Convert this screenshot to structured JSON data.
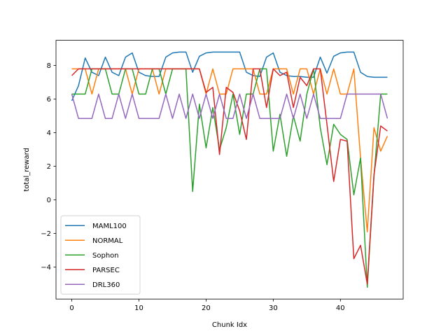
{
  "chart_data": {
    "type": "line",
    "title": "",
    "xlabel": "Chunk Idx",
    "ylabel": "total_reward",
    "xlim": [
      -2.35,
      49.35
    ],
    "ylim": [
      -5.9,
      9.5
    ],
    "xticks": [
      0,
      10,
      20,
      30,
      40
    ],
    "yticks": [
      -4,
      -2,
      0,
      2,
      4,
      6,
      8
    ],
    "grid": false,
    "legend": "lower-left",
    "x": [
      0,
      1,
      2,
      3,
      4,
      5,
      6,
      7,
      8,
      9,
      10,
      11,
      12,
      13,
      14,
      15,
      16,
      17,
      18,
      19,
      20,
      21,
      22,
      23,
      24,
      25,
      26,
      27,
      28,
      29,
      30,
      31,
      32,
      33,
      34,
      35,
      36,
      37,
      38,
      39,
      40,
      41,
      42,
      43,
      44,
      45,
      46,
      47
    ],
    "series": [
      {
        "name": "MAML100",
        "color": "#1f77b4",
        "values": [
          5.9,
          6.8,
          8.45,
          7.6,
          7.4,
          8.5,
          7.6,
          7.4,
          8.5,
          8.75,
          7.6,
          7.4,
          7.35,
          7.35,
          8.5,
          8.75,
          8.8,
          8.8,
          7.6,
          8.55,
          8.75,
          8.8,
          8.8,
          8.8,
          8.8,
          8.8,
          7.6,
          7.4,
          7.35,
          8.5,
          8.75,
          7.6,
          7.4,
          7.35,
          7.35,
          7.3,
          7.3,
          8.5,
          7.55,
          8.55,
          8.75,
          8.8,
          8.8,
          7.6,
          7.35,
          7.3,
          7.3,
          7.3
        ]
      },
      {
        "name": "NORMAL",
        "color": "#ff7f0e",
        "values": [
          7.8,
          7.8,
          7.8,
          6.3,
          7.8,
          7.8,
          7.8,
          7.8,
          7.8,
          6.3,
          7.8,
          7.8,
          7.8,
          6.3,
          7.8,
          7.8,
          7.8,
          7.8,
          7.8,
          7.8,
          6.3,
          7.8,
          6.3,
          6.3,
          7.8,
          7.8,
          7.8,
          7.8,
          6.3,
          6.3,
          7.8,
          7.8,
          7.8,
          6.3,
          7.8,
          7.8,
          6.3,
          7.8,
          6.3,
          7.8,
          6.3,
          6.3,
          7.8,
          2.5,
          -1.9,
          4.3,
          2.9,
          3.8
        ]
      },
      {
        "name": "Sophon",
        "color": "#2ca02c",
        "values": [
          6.3,
          6.3,
          6.3,
          7.8,
          7.8,
          7.8,
          6.3,
          6.3,
          7.8,
          7.8,
          6.3,
          6.3,
          7.8,
          7.8,
          6.3,
          7.8,
          7.8,
          7.8,
          0.5,
          5.7,
          3.1,
          5.5,
          3.0,
          4.3,
          6.3,
          3.9,
          6.3,
          6.3,
          7.8,
          7.8,
          2.9,
          5.1,
          2.6,
          5.0,
          3.5,
          6.3,
          7.8,
          4.3,
          2.1,
          4.5,
          3.9,
          3.6,
          0.3,
          2.5,
          -5.2,
          1.4,
          6.3,
          6.3
        ]
      },
      {
        "name": "PARSEC",
        "color": "#d62728",
        "values": [
          7.4,
          7.8,
          7.8,
          7.8,
          7.8,
          7.8,
          7.8,
          7.8,
          7.8,
          7.8,
          7.8,
          7.8,
          7.8,
          7.8,
          7.8,
          7.8,
          7.8,
          7.8,
          7.8,
          7.8,
          6.4,
          6.7,
          2.7,
          6.7,
          6.4,
          5.3,
          3.6,
          7.8,
          7.8,
          5.5,
          7.8,
          7.4,
          7.6,
          5.5,
          7.3,
          6.8,
          7.8,
          7.8,
          4.5,
          1.1,
          3.6,
          3.5,
          -3.5,
          -2.7,
          -5.0,
          1.5,
          4.4,
          4.1
        ]
      },
      {
        "name": "DRL360",
        "color": "#9467bd",
        "values": [
          6.3,
          4.85,
          4.85,
          4.85,
          6.3,
          4.85,
          4.85,
          6.3,
          4.85,
          6.3,
          4.85,
          4.85,
          4.85,
          4.85,
          6.3,
          4.85,
          6.3,
          4.85,
          6.3,
          4.85,
          6.3,
          4.85,
          6.3,
          4.85,
          4.85,
          6.3,
          4.85,
          6.3,
          4.85,
          4.85,
          4.85,
          4.85,
          6.3,
          4.85,
          6.3,
          4.85,
          6.3,
          4.85,
          4.85,
          4.85,
          4.85,
          6.3,
          6.3,
          6.3,
          6.3,
          6.3,
          6.3,
          4.85
        ]
      }
    ]
  }
}
